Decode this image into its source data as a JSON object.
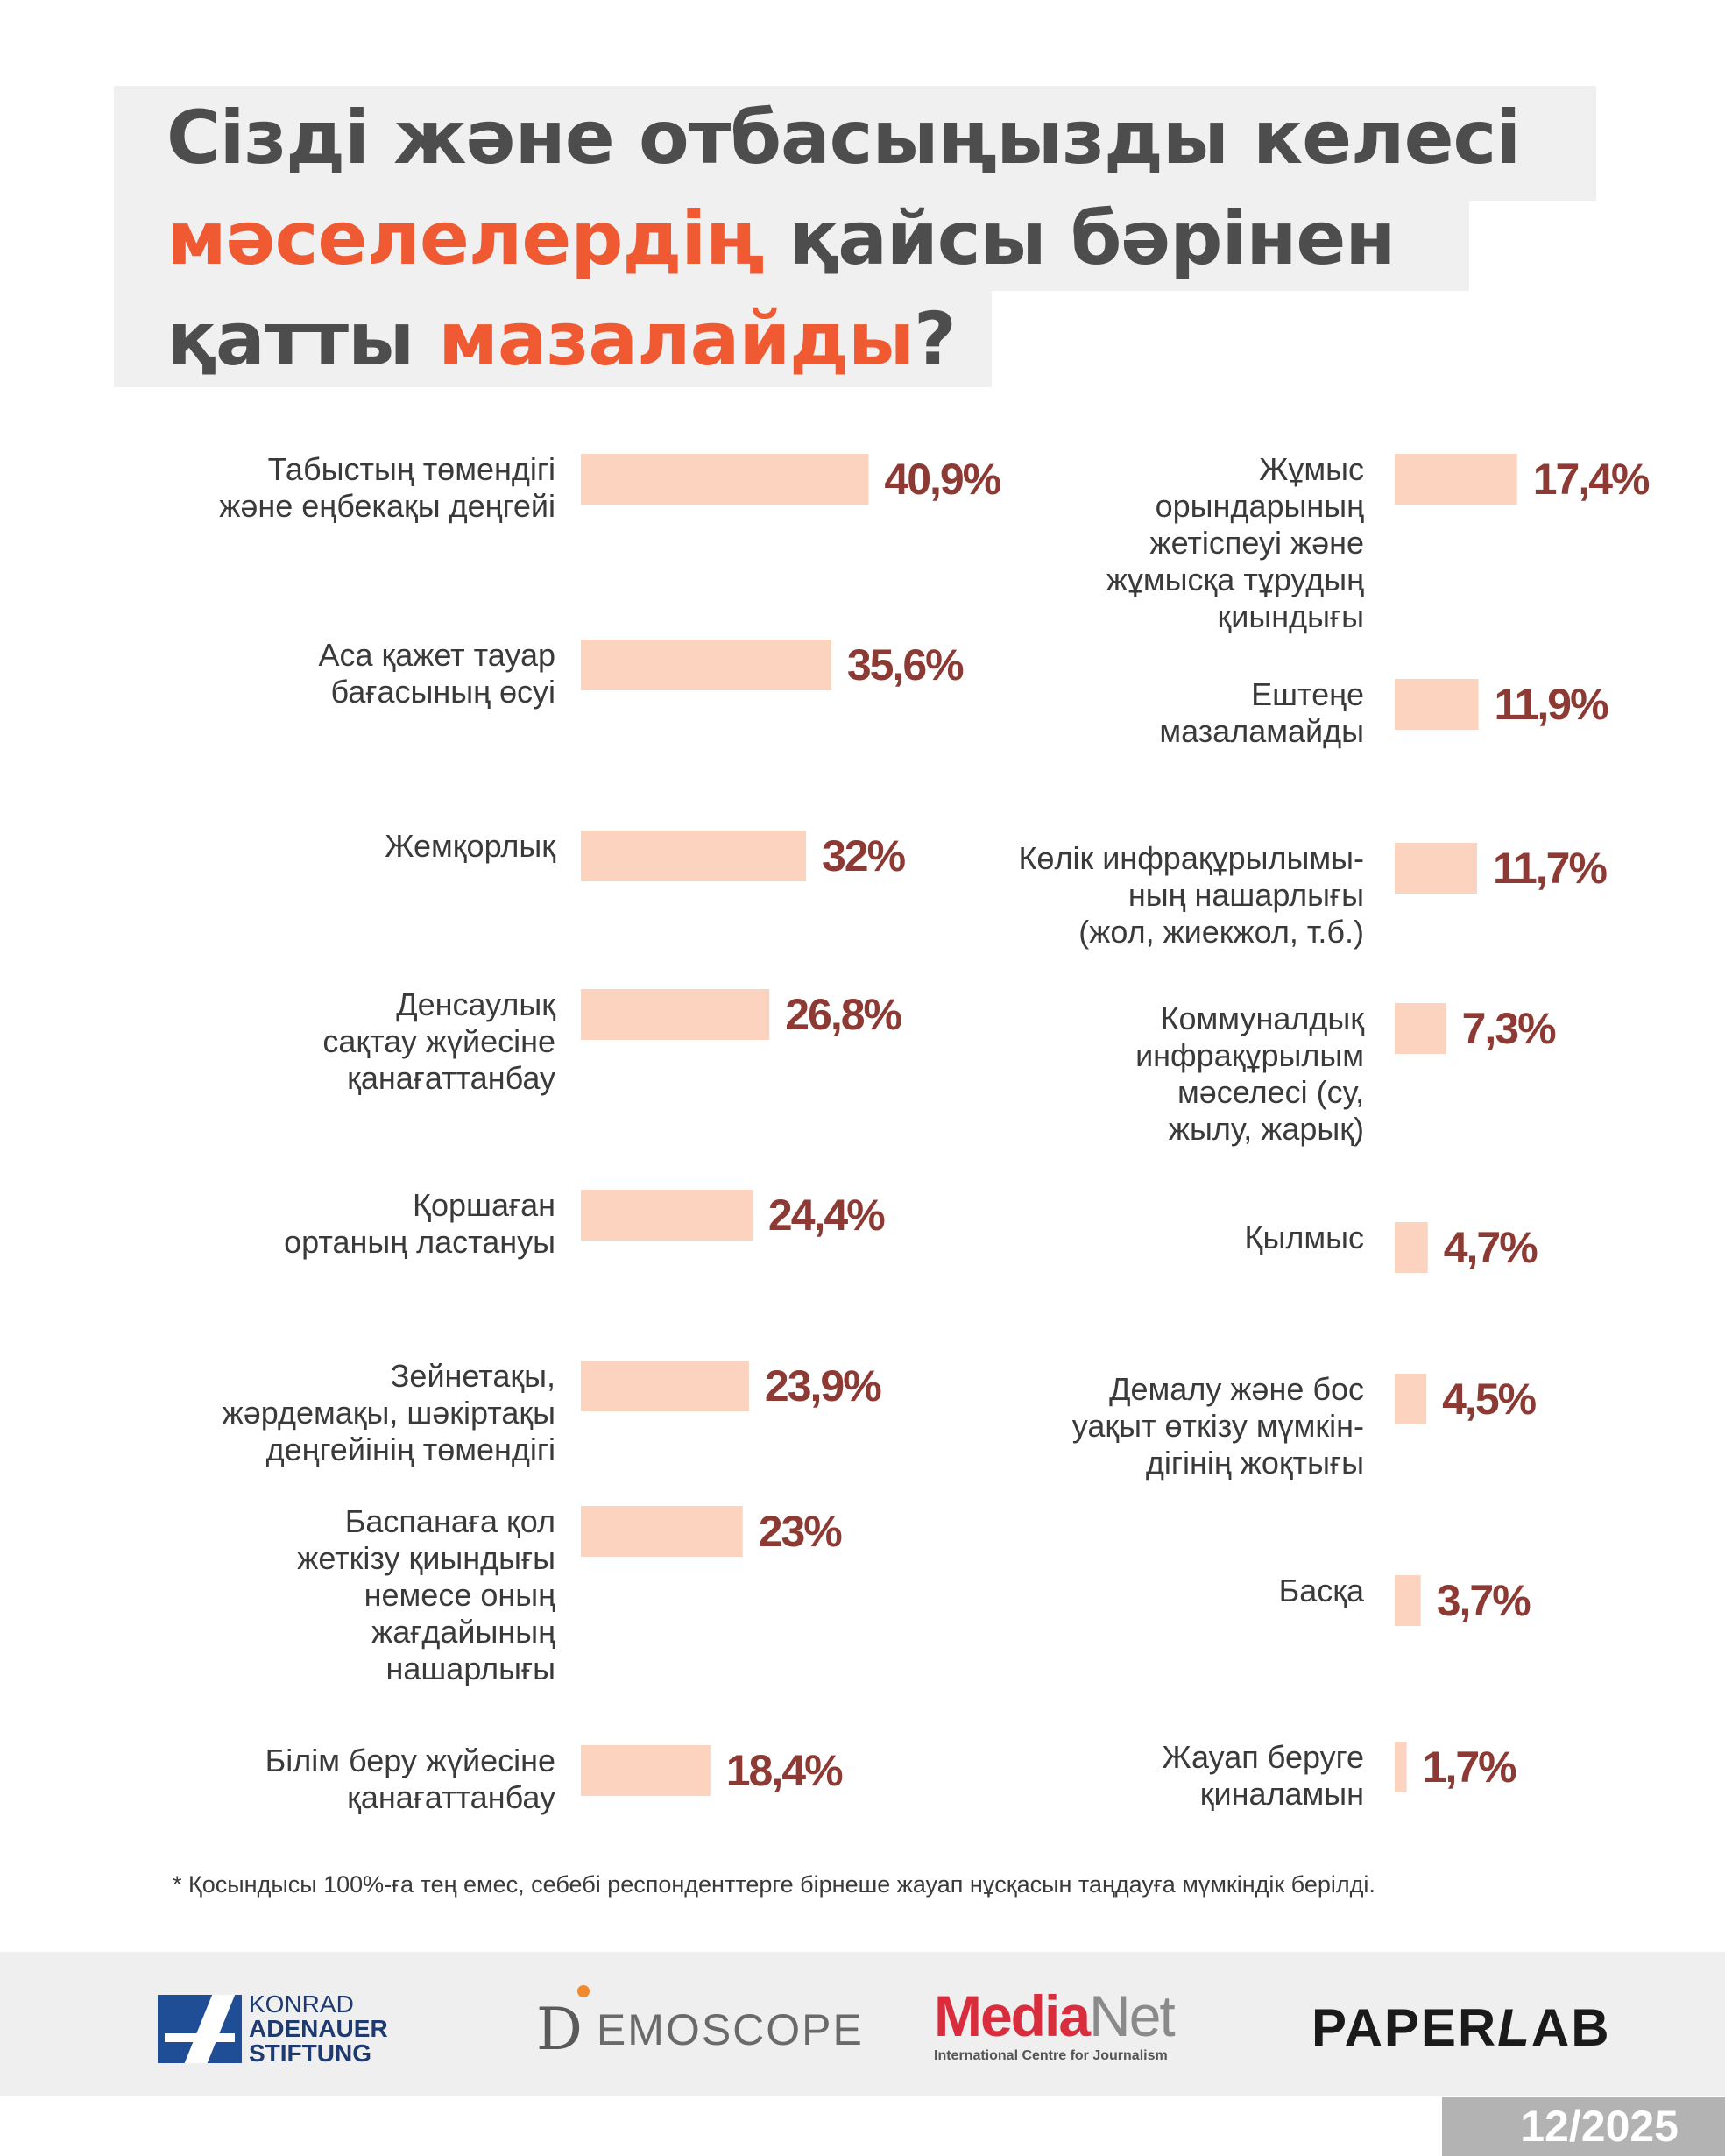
{
  "title": {
    "line1": "Сізді және отбасыңызды келесі",
    "line2_accent": "мәселелердің",
    "line2_rest": " қайсы бәрінен",
    "line3_start": "қатты ",
    "line3_accent": "мазалайды",
    "line3_end": "?"
  },
  "chart_data": {
    "type": "bar",
    "orientation": "horizontal",
    "unit": "%",
    "title": "Сізді және отбасыңызды келесі мәселелердің қайсы бәрінен қатты мазалайды?",
    "columns": [
      {
        "name": "left",
        "items": [
          {
            "label": "Табыстың төмендігі және еңбекақы деңгейі",
            "label_lines": [
              "Табыстың төмендігі",
              "және еңбекақы деңгейі"
            ],
            "value": 40.9,
            "value_text": "40,9%"
          },
          {
            "label": "Аса қажет тауар бағасының өсуі",
            "label_lines": [
              "Аса қажет тауар",
              "бағасының өсуі"
            ],
            "value": 35.6,
            "value_text": "35,6%"
          },
          {
            "label": "Жемқорлық",
            "label_lines": [
              "Жемқорлық"
            ],
            "value": 32,
            "value_text": "32%"
          },
          {
            "label": "Денсаулық сақтау жүйесіне қанағаттанбау",
            "label_lines": [
              "Денсаулық",
              "сақтау жүйесіне",
              "қанағаттанбау"
            ],
            "value": 26.8,
            "value_text": "26,8%"
          },
          {
            "label": "Қоршаған ортаның ластануы",
            "label_lines": [
              "Қоршаған",
              "ортаның ластануы"
            ],
            "value": 24.4,
            "value_text": "24,4%"
          },
          {
            "label": "Зейнетақы, жәрдемақы, шәкіртақы деңгейінің төмендігі",
            "label_lines": [
              "Зейнетақы,",
              "жәрдемақы, шәкіртақы",
              "деңгейінің төмендігі"
            ],
            "value": 23.9,
            "value_text": "23,9%"
          },
          {
            "label": "Баспанаға қол жеткізу қиындығы немесе оның жағдайының нашарлығы",
            "label_lines": [
              "Баспанаға қол",
              "жеткізу қиындығы",
              "немесе оның",
              "жағдайының",
              "нашарлығы"
            ],
            "value": 23,
            "value_text": "23%"
          },
          {
            "label": "Білім беру жүйесіне қанағаттанбау",
            "label_lines": [
              "Білім беру жүйесіне",
              "қанағаттанбау"
            ],
            "value": 18.4,
            "value_text": "18,4%"
          }
        ]
      },
      {
        "name": "right",
        "items": [
          {
            "label": "Жұмыс орындарының жетіспеуі және жұмысқа тұрудың қиындығы",
            "label_lines": [
              "Жұмыс",
              "орындарының",
              "жетіспеуі және",
              "жұмысқа тұрудың",
              "қиындығы"
            ],
            "value": 17.4,
            "value_text": "17,4%"
          },
          {
            "label": "Ештеңе мазаламайды",
            "label_lines": [
              "Ештеңе",
              "мазаламайды"
            ],
            "value": 11.9,
            "value_text": "11,9%"
          },
          {
            "label": "Көлік инфрақұрылымының нашарлығы (жол, жиекжол, т.б.)",
            "label_lines": [
              "Көлік инфрақұрылымы-",
              "ның нашарлығы",
              "(жол, жиекжол, т.б.)"
            ],
            "value": 11.7,
            "value_text": "11,7%"
          },
          {
            "label": "Коммуналдық инфрақұрылым мәселесі (су, жылу, жарық)",
            "label_lines": [
              "Коммуналдық",
              "инфрақұрылым",
              "мәселесі (су,",
              "жылу, жарық)"
            ],
            "value": 7.3,
            "value_text": "7,3%"
          },
          {
            "label": "Қылмыс",
            "label_lines": [
              "Қылмыс"
            ],
            "value": 4.7,
            "value_text": "4,7%"
          },
          {
            "label": "Демалу және бос уақыт өткізу мүмкіндігінің жоқтығы",
            "label_lines": [
              "Демалу және бос",
              "уақыт өткізу мүмкін-",
              "дігінің жоқтығы"
            ],
            "value": 4.5,
            "value_text": "4,5%"
          },
          {
            "label": "Басқа",
            "label_lines": [
              "Басқа"
            ],
            "value": 3.7,
            "value_text": "3,7%"
          },
          {
            "label": "Жауап беруге қиналамын",
            "label_lines": [
              "Жауап беруге",
              "қиналамын"
            ],
            "value": 1.7,
            "value_text": "1,7%"
          }
        ]
      }
    ],
    "colors": {
      "bar": "#fcd3bf",
      "value_text": "#8c3a33"
    }
  },
  "footnote": "* Қосындысы 100%-ға тең емес, себебі респонденттерге бірнеше жауап нұсқасын таңдауға мүмкіндік берілді.",
  "logos": {
    "kas": {
      "line1": "KONRAD",
      "line2": "ADENAUER",
      "line3": "STIFTUNG"
    },
    "demoscope": {
      "d": "D",
      "rest": "EMOSCOPE"
    },
    "medianet": {
      "part1": "Media",
      "part2": "Net",
      "subtitle": "International Centre for Journalism"
    },
    "paperlab": {
      "part1": "PAPER",
      "part2": "L",
      "part3": "AB"
    }
  },
  "date": "12/2025",
  "colors": {
    "accent": "#ef5a33",
    "title": "#4d4d4d",
    "panel": "#f0f0f0",
    "footer": "#efefef",
    "date_bg": "#b3b3b3"
  }
}
